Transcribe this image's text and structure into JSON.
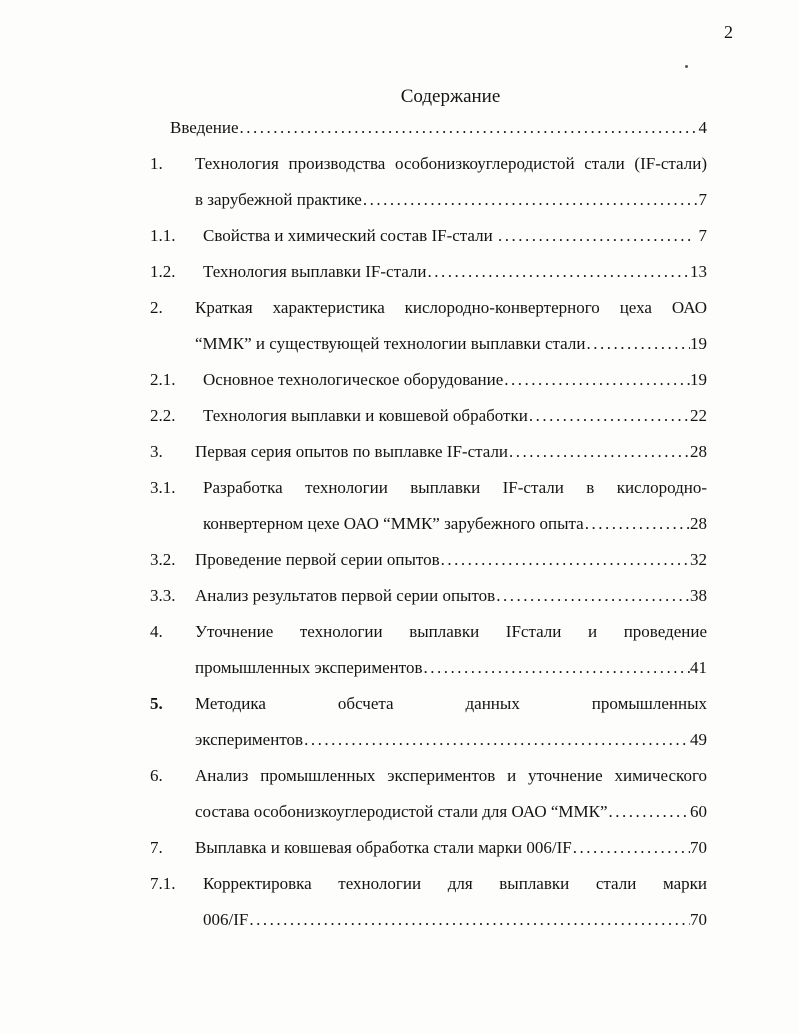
{
  "page": {
    "number": "2",
    "title": "Содержание"
  },
  "toc": {
    "leader_dot": ".",
    "entries": [
      {
        "num": "",
        "style": "intro",
        "lines": [
          {
            "text": "Введение",
            "page": "4"
          }
        ]
      },
      {
        "num": "1.",
        "style": "main",
        "lines": [
          {
            "text": "Технология производства особонизкоуглеродистой стали (IF-стали)",
            "justify": true
          },
          {
            "text": "в зарубежной практике",
            "page": "7"
          }
        ]
      },
      {
        "num": "1.1.",
        "style": "sub",
        "lines": [
          {
            "text": "Свойства и химический состав IF-стали ",
            "page": " 7"
          }
        ]
      },
      {
        "num": "1.2.",
        "style": "sub",
        "lines": [
          {
            "text": "Технология выплавки IF-стали",
            "page": "13"
          }
        ]
      },
      {
        "num": "2.",
        "style": "main",
        "lines": [
          {
            "text": "Краткая характеристика кислородно-конвертерного цеха ОАО",
            "justify": true
          },
          {
            "text": "“ММК” и существующей технологии выплавки стали",
            "page": "19"
          }
        ]
      },
      {
        "num": "2.1.",
        "style": "sub",
        "lines": [
          {
            "text": "Основное технологическое оборудование",
            "page": "19"
          }
        ]
      },
      {
        "num": "2.2.",
        "style": "sub",
        "lines": [
          {
            "text": "Технология выплавки и ковшевой обработки",
            "page": "22"
          }
        ]
      },
      {
        "num": "3.",
        "style": "main",
        "lines": [
          {
            "text": "Первая серия опытов по выплавке IF-стали",
            "page": "28"
          }
        ]
      },
      {
        "num": "3.1.",
        "style": "sub",
        "lines": [
          {
            "text": "Разработка технологии выплавки IF-стали в кислородно-",
            "justify": true
          },
          {
            "text": "конвертерном цехе ОАО “ММК” зарубежного опыта",
            "page": "28"
          }
        ]
      },
      {
        "num": "3.2.",
        "style": "main",
        "lines": [
          {
            "text": "Проведение первой серии опытов",
            "page": "32"
          }
        ]
      },
      {
        "num": "3.3.",
        "style": "main",
        "lines": [
          {
            "text": "Анализ результатов первой серии опытов",
            "page": "38"
          }
        ]
      },
      {
        "num": "4.",
        "style": "main",
        "lines": [
          {
            "text": "Уточнение технологии выплавки IFстали и проведение",
            "justify": true
          },
          {
            "text": "промышленных экспериментов",
            "page": "41"
          }
        ]
      },
      {
        "num": "5.",
        "style": "main",
        "num_bold": true,
        "lines": [
          {
            "text": "Методика обсчета данных промышленных",
            "justify": true
          },
          {
            "text": "экспериментов",
            "page": "49"
          }
        ]
      },
      {
        "num": "6.",
        "style": "main",
        "lines": [
          {
            "text": "Анализ промышленных экспериментов и уточнение химического",
            "justify": true
          },
          {
            "text": "состава особонизкоуглеродистой стали для ОАО “ММК”",
            "page": "60"
          }
        ]
      },
      {
        "num": "7.",
        "style": "main",
        "lines": [
          {
            "text": "Выплавка и ковшевая обработка стали марки 006/IF",
            "page": "70"
          }
        ]
      },
      {
        "num": "7.1.",
        "style": "sub",
        "lines": [
          {
            "text": "Корректировка технологии для выплавки стали марки",
            "justify": true
          },
          {
            "text": "006/IF",
            "page": "70"
          }
        ]
      }
    ]
  }
}
